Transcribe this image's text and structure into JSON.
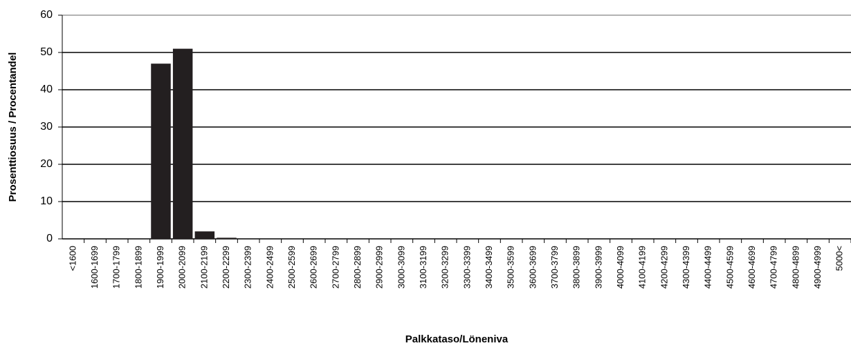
{
  "chart_data": {
    "type": "bar",
    "x_label": "Palkkataso/Löneniva",
    "y_label": "Prosenttiosuus / Procentandel",
    "categories": [
      "<1600",
      "1600-1699",
      "1700-1799",
      "1800-1899",
      "1900-1999",
      "2000-2099",
      "2100-2199",
      "2200-2299",
      "2300-2399",
      "2400-2499",
      "2500-2599",
      "2600-2699",
      "2700-2799",
      "2800-2899",
      "2900-2999",
      "3000-3099",
      "3100-3199",
      "3200-3299",
      "3300-3399",
      "3400-3499",
      "3500-3599",
      "3600-3699",
      "3700-3799",
      "3800-3899",
      "3900-3999",
      "4000-4099",
      "4100-4199",
      "4200-4299",
      "4300-4399",
      "4400-4499",
      "4500-4599",
      "4600-4699",
      "4700-4799",
      "4800-4899",
      "4900-4999",
      "5000<"
    ],
    "values": [
      0,
      0,
      0,
      0,
      47,
      51,
      2,
      0.3,
      0,
      0,
      0,
      0,
      0,
      0,
      0,
      0,
      0,
      0,
      0,
      0,
      0,
      0,
      0,
      0,
      0,
      0,
      0,
      0,
      0,
      0,
      0,
      0,
      0,
      0,
      0,
      0
    ],
    "color": "#231f20",
    "ylim": [
      0,
      60
    ],
    "yticks": [
      0,
      10,
      20,
      30,
      40,
      50,
      60
    ],
    "grid": true
  }
}
